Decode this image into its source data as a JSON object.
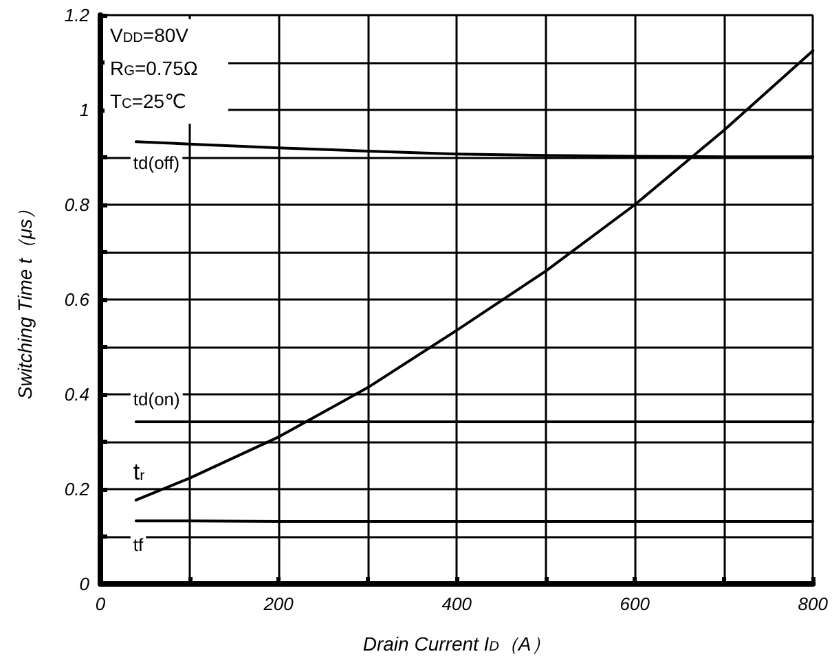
{
  "chart_data": {
    "type": "line",
    "xlabel": "Drain Current I$_{D}$（A）",
    "ylabel": "Switching Time t（μs）",
    "annotations": [
      "V$_{DD}$=80V",
      "R$_{G}$=0.75Ω",
      "T$_{C}$=25℃"
    ],
    "x": [
      40,
      100,
      200,
      300,
      400,
      500,
      600,
      700,
      800
    ],
    "series": [
      {
        "name": "td(off)",
        "color": "#000000",
        "values": [
          0.933,
          0.928,
          0.92,
          0.913,
          0.907,
          0.904,
          0.902,
          0.901,
          0.901
        ]
      },
      {
        "name": "td(on)",
        "color": "#000000",
        "values": [
          0.342,
          0.342,
          0.342,
          0.342,
          0.342,
          0.342,
          0.342,
          0.342,
          0.342
        ]
      },
      {
        "name": "t$_{r}$",
        "color": "#000000",
        "values": [
          0.177,
          0.223,
          0.31,
          0.414,
          0.535,
          0.66,
          0.8,
          0.957,
          1.125
        ]
      },
      {
        "name": "tf",
        "color": "#000000",
        "values": [
          0.133,
          0.133,
          0.132,
          0.132,
          0.132,
          0.132,
          0.132,
          0.132,
          0.132
        ]
      }
    ],
    "xlim": [
      0,
      800
    ],
    "xticks": [
      0,
      {
        "value": 100,
        "label": null
      },
      200,
      {
        "value": 300,
        "label": null
      },
      400,
      {
        "value": 500,
        "label": null
      },
      600,
      {
        "value": 700,
        "label": null
      },
      800
    ],
    "ylim": [
      0,
      1.2
    ],
    "yticks": [
      0,
      {
        "value": 0.1,
        "label": null
      },
      0.2,
      {
        "value": 0.3,
        "label": null
      },
      0.4,
      {
        "value": 0.5,
        "label": null
      },
      0.6,
      {
        "value": 0.7,
        "label": null
      },
      0.8,
      {
        "value": 0.9,
        "label": null
      },
      1,
      {
        "value": 1.1,
        "label": null
      },
      1.2
    ],
    "grid": true,
    "legend": "left",
    "marker": "none",
    "line_style": "solid"
  }
}
